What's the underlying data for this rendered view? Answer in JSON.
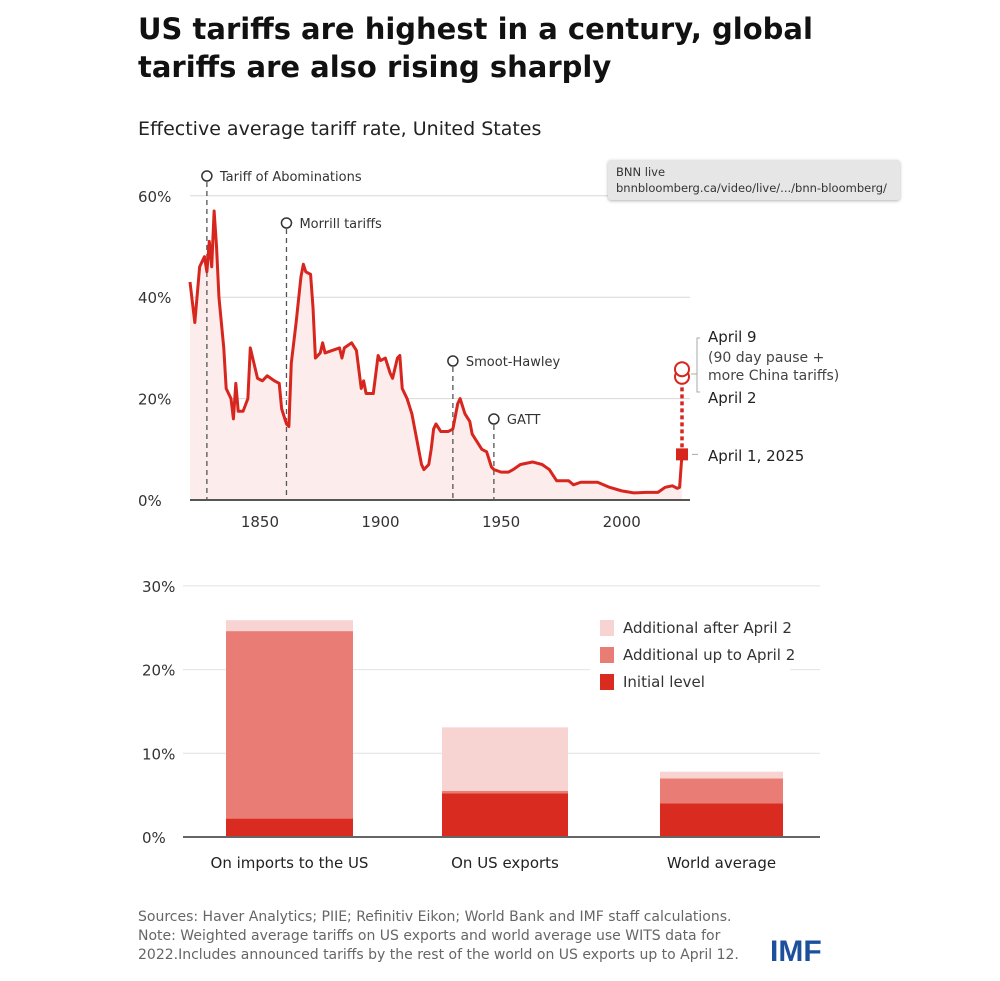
{
  "title": "US tariffs are highest in a century, global tariffs are also rising sharply",
  "tooltip": {
    "line1": "BNN live",
    "line2": "bnnbloomberg.ca/video/live/.../bnn-bloomberg/"
  },
  "footer": {
    "sources": "Sources: Haver Analytics; PIIE; Refinitiv Eikon; World Bank and IMF staff calculations.",
    "note": "Note: Weighted average tariffs on US exports and world average use WITS data for 2022.Includes announced tariffs by the rest of the world on US exports up to April 12."
  },
  "logo": "IMF",
  "colors": {
    "line": "#d7261e",
    "area": "#fcecec",
    "initial": "#d92b1f",
    "upto": "#e97c74",
    "after": "#f7d3d1"
  },
  "chart_data": [
    {
      "type": "line",
      "title": "Effective average tariff rate, United States",
      "xlim": [
        1821,
        2025
      ],
      "ylim": [
        0,
        60
      ],
      "xticks": [
        "1850",
        "1900",
        "1950",
        "2000"
      ],
      "yticks": [
        "0%",
        "20%",
        "40%",
        "60%"
      ],
      "x": [
        1821,
        1823,
        1825,
        1827,
        1828,
        1829,
        1830,
        1831,
        1832,
        1833,
        1835,
        1836,
        1838,
        1839,
        1840,
        1841,
        1843,
        1845,
        1846,
        1847,
        1849,
        1851,
        1853,
        1856,
        1858,
        1859,
        1861,
        1862,
        1863,
        1865,
        1867,
        1868,
        1869,
        1871,
        1872,
        1873,
        1875,
        1876,
        1877,
        1880,
        1883,
        1884,
        1885,
        1888,
        1890,
        1892,
        1893,
        1894,
        1897,
        1899,
        1900,
        1902,
        1904,
        1905,
        1907,
        1908,
        1909,
        1911,
        1913,
        1915,
        1917,
        1918,
        1920,
        1921,
        1922,
        1923,
        1925,
        1928,
        1930,
        1932,
        1933,
        1935,
        1937,
        1938,
        1940,
        1942,
        1944,
        1946,
        1947,
        1950,
        1953,
        1955,
        1958,
        1963,
        1967,
        1970,
        1973,
        1978,
        1980,
        1983,
        1990,
        1995,
        2000,
        2005,
        2010,
        2015,
        2018,
        2021,
        2023,
        2024,
        2025
      ],
      "y": [
        43,
        35,
        46,
        48,
        45,
        51,
        46,
        57,
        50,
        40,
        30,
        22,
        20,
        16,
        23,
        17.5,
        17.5,
        20,
        30,
        28,
        24,
        23.5,
        24.5,
        23.5,
        23,
        18,
        15,
        14.5,
        27,
        35,
        44,
        46.5,
        45,
        44.5,
        38,
        28,
        29,
        31,
        29,
        29.5,
        30,
        28,
        30,
        31,
        29.5,
        22,
        23.5,
        21,
        21,
        28.5,
        27.5,
        28,
        25,
        24,
        28,
        28.5,
        22,
        20,
        17,
        12,
        7,
        6,
        7,
        10,
        14,
        15,
        13.5,
        13.5,
        14,
        19,
        20,
        17,
        15.5,
        13,
        11.5,
        10,
        9.5,
        6.5,
        6,
        5.5,
        5.5,
        6,
        7,
        7.5,
        7,
        6,
        3.8,
        3.8,
        3,
        3.5,
        3.5,
        2.5,
        1.8,
        1.4,
        1.5,
        1.5,
        2.5,
        2.8,
        2.3,
        2.5,
        9
      ],
      "events": [
        {
          "label": "Tariff of Abominations",
          "year": 1828
        },
        {
          "label": "Morrill tariffs",
          "year": 1861
        },
        {
          "label": "Smoot-Hawley",
          "year": 1930
        },
        {
          "label": "GATT",
          "year": 1947
        }
      ],
      "points_2025": [
        {
          "label": "April 1, 2025",
          "value": 9
        },
        {
          "label": "April 2",
          "value": 24.3
        },
        {
          "label": "April 9",
          "sublabel1": "(90 day pause +",
          "sublabel2": "more China tariffs)",
          "value": 25.8
        }
      ]
    },
    {
      "type": "bar",
      "stacked": true,
      "ylim": [
        0,
        30
      ],
      "yticks": [
        "0%",
        "10%",
        "20%",
        "30%"
      ],
      "categories": [
        "On imports to the US",
        "On US exports",
        "World average"
      ],
      "series": [
        {
          "name": "Initial level",
          "values": [
            2.2,
            5.2,
            4.0
          ]
        },
        {
          "name": "Additional up to April 2",
          "values": [
            22.4,
            0.3,
            3.0
          ]
        },
        {
          "name": "Additional after April 2",
          "values": [
            1.3,
            7.6,
            0.8
          ]
        }
      ],
      "legend": "top-right"
    }
  ]
}
